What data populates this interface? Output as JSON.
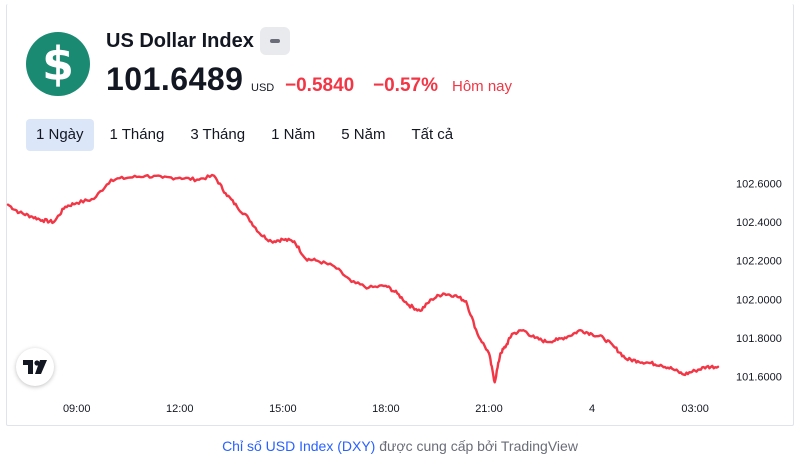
{
  "header": {
    "logo_symbol": "$",
    "title": "US Dollar Index",
    "price": "101.6489",
    "currency": "USD",
    "change": "−0.5840",
    "change_percent": "−0.57%",
    "period_label": "Hôm nay",
    "accent_color": "#1a8a72",
    "negative_color": "#f23645"
  },
  "tabs": [
    {
      "label": "1 Ngày",
      "active": true
    },
    {
      "label": "1 Tháng",
      "active": false
    },
    {
      "label": "3 Tháng",
      "active": false
    },
    {
      "label": "1 Năm",
      "active": false
    },
    {
      "label": "5 Năm",
      "active": false
    },
    {
      "label": "Tất cả",
      "active": false
    }
  ],
  "chart_data": {
    "type": "line",
    "title": "",
    "xlabel": "",
    "ylabel": "",
    "x_ticks": [
      "09:00",
      "12:00",
      "15:00",
      "18:00",
      "21:00",
      "4",
      "03:00"
    ],
    "y_ticks": [
      "102.6000",
      "102.4000",
      "102.2000",
      "102.0000",
      "101.8000",
      "101.6000"
    ],
    "ylim": [
      101.53,
      102.67
    ],
    "grid": false,
    "series": [
      {
        "color": "#f23645",
        "x": [
          "07:00",
          "07:20",
          "07:40",
          "08:00",
          "08:20",
          "08:40",
          "09:00",
          "09:30",
          "10:00",
          "10:30",
          "11:00",
          "11:30",
          "12:00",
          "12:30",
          "13:00",
          "13:20",
          "13:40",
          "14:00",
          "14:20",
          "14:40",
          "15:00",
          "15:20",
          "15:40",
          "16:00",
          "16:30",
          "17:00",
          "17:30",
          "18:00",
          "18:20",
          "18:40",
          "19:00",
          "19:20",
          "19:40",
          "20:00",
          "20:20",
          "20:40",
          "21:00",
          "21:10",
          "21:20",
          "21:30",
          "21:40",
          "22:00",
          "22:20",
          "22:40",
          "23:00",
          "23:20",
          "23:40",
          "00:00",
          "00:20",
          "00:40",
          "01:00",
          "01:20",
          "01:40",
          "02:00",
          "02:20",
          "02:40",
          "03:00",
          "03:20",
          "03:40"
        ],
        "values": [
          102.49,
          102.45,
          102.43,
          102.41,
          102.4,
          102.48,
          102.5,
          102.52,
          102.62,
          102.63,
          102.64,
          102.63,
          102.63,
          102.62,
          102.64,
          102.55,
          102.48,
          102.42,
          102.34,
          102.3,
          102.31,
          102.3,
          102.21,
          102.2,
          102.17,
          102.09,
          102.06,
          102.07,
          102.03,
          101.97,
          101.94,
          102.0,
          102.03,
          102.02,
          101.99,
          101.82,
          101.72,
          101.57,
          101.72,
          101.76,
          101.82,
          101.84,
          101.8,
          101.78,
          101.79,
          101.81,
          101.84,
          101.82,
          101.8,
          101.75,
          101.69,
          101.68,
          101.67,
          101.66,
          101.64,
          101.61,
          101.63,
          101.65,
          101.65
        ]
      }
    ]
  },
  "tv_logo": "tradingview-logo-icon",
  "footer": {
    "link_text": "Chỉ số USD Index (DXY)",
    "rest_text": " được cung cấp bởi TradingView"
  }
}
